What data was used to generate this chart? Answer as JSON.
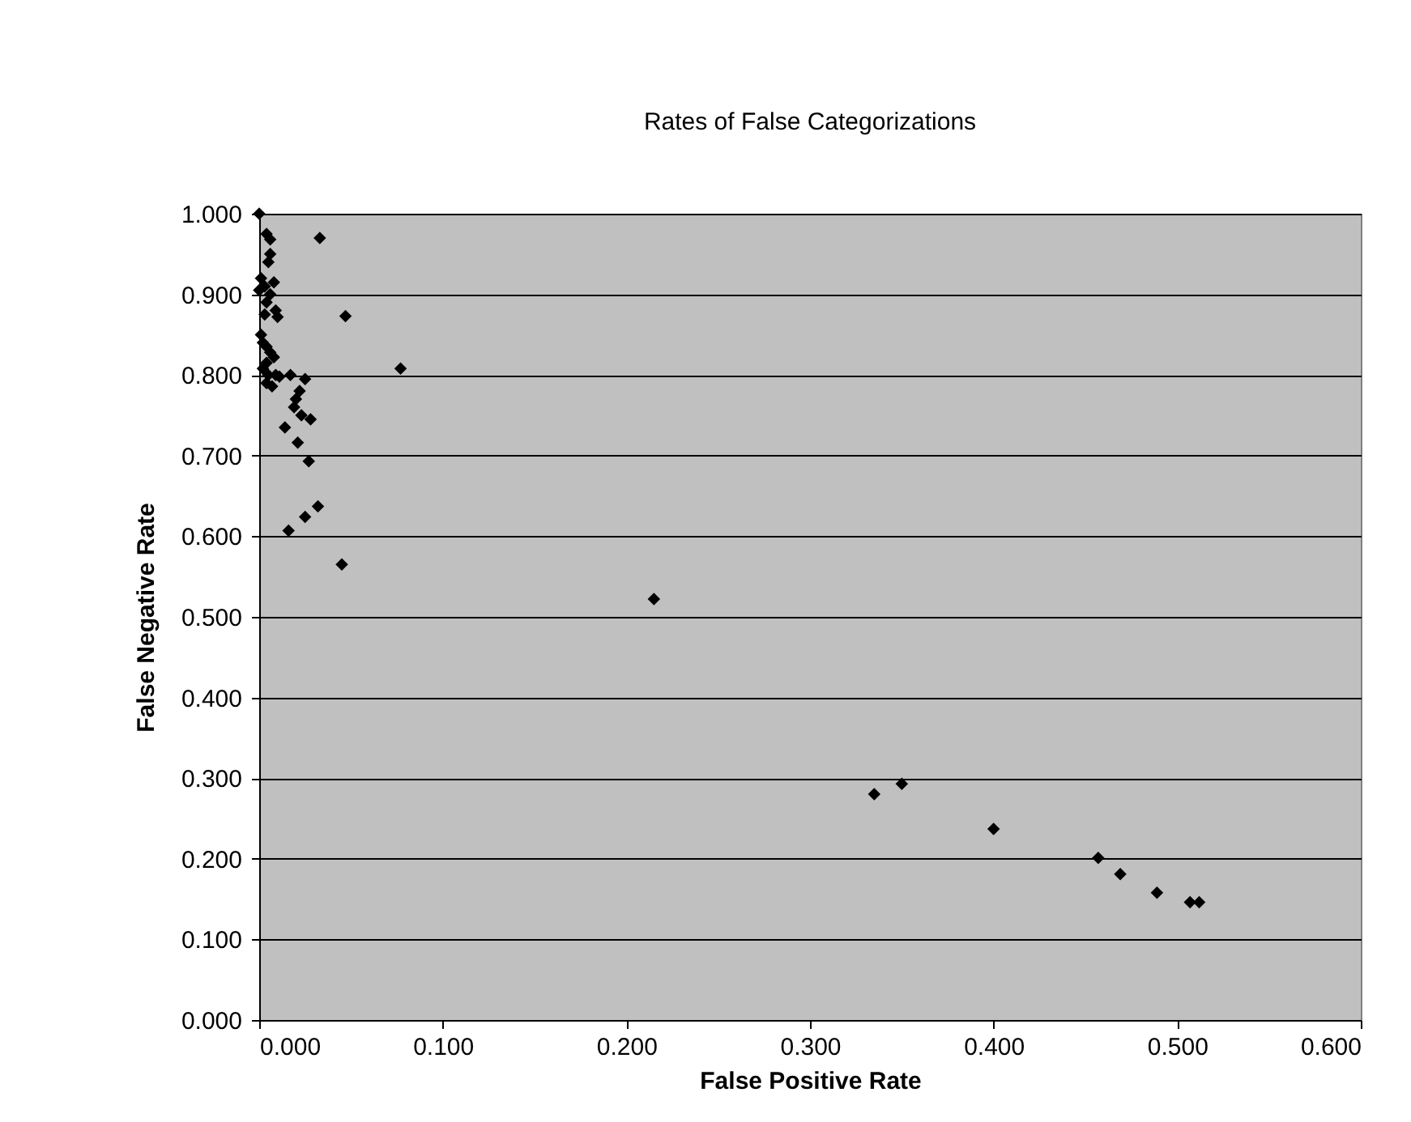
{
  "chart_data": {
    "type": "scatter",
    "title": "Rates of False Categorizations",
    "xlabel": "False Positive Rate",
    "ylabel": "False Negative Rate",
    "x": [
      0.0,
      0.004,
      0.006,
      0.033,
      0.006,
      0.005,
      0.001,
      0.003,
      0.0,
      0.008,
      0.006,
      0.004,
      0.047,
      0.009,
      0.01,
      0.003,
      0.001,
      0.002,
      0.004,
      0.006,
      0.008,
      0.004,
      0.002,
      0.005,
      0.007,
      0.004,
      0.009,
      0.011,
      0.077,
      0.017,
      0.025,
      0.022,
      0.02,
      0.019,
      0.023,
      0.028,
      0.014,
      0.021,
      0.027,
      0.032,
      0.025,
      0.016,
      0.045,
      0.215,
      0.335,
      0.35,
      0.4,
      0.457,
      0.469,
      0.489,
      0.507,
      0.512
    ],
    "series": [
      {
        "color": "#000000",
        "values": [
          1.0,
          0.975,
          0.968,
          0.97,
          0.95,
          0.94,
          0.92,
          0.91,
          0.905,
          0.915,
          0.9,
          0.89,
          0.873,
          0.88,
          0.872,
          0.875,
          0.85,
          0.84,
          0.835,
          0.828,
          0.822,
          0.815,
          0.808,
          0.8,
          0.786,
          0.79,
          0.8,
          0.798,
          0.808,
          0.8,
          0.795,
          0.78,
          0.77,
          0.76,
          0.75,
          0.745,
          0.735,
          0.716,
          0.693,
          0.637,
          0.624,
          0.607,
          0.565,
          0.522,
          0.28,
          0.293,
          0.237,
          0.201,
          0.181,
          0.158,
          0.146,
          0.146
        ]
      }
    ],
    "xlim": [
      0,
      0.6
    ],
    "ylim": [
      0,
      1
    ],
    "xticks": [
      {
        "value": 0,
        "label": "0.000"
      },
      {
        "value": 0.1,
        "label": "0.100"
      },
      {
        "value": 0.2,
        "label": "0.200"
      },
      {
        "value": 0.3,
        "label": "0.300"
      },
      {
        "value": 0.4,
        "label": "0.400"
      },
      {
        "value": 0.5,
        "label": "0.500"
      },
      {
        "value": 0.6,
        "label": "0.600"
      }
    ],
    "yticks": [
      {
        "value": 0,
        "label": "0.000"
      },
      {
        "value": 0.1,
        "label": "0.100"
      },
      {
        "value": 0.2,
        "label": "0.200"
      },
      {
        "value": 0.3,
        "label": "0.300"
      },
      {
        "value": 0.4,
        "label": "0.400"
      },
      {
        "value": 0.5,
        "label": "0.500"
      },
      {
        "value": 0.6,
        "label": "0.600"
      },
      {
        "value": 0.7,
        "label": "0.700"
      },
      {
        "value": 0.8,
        "label": "0.800"
      },
      {
        "value": 0.9,
        "label": "0.900"
      },
      {
        "value": 1,
        "label": "1.000"
      }
    ],
    "grid": "y",
    "marker": "diamond"
  }
}
